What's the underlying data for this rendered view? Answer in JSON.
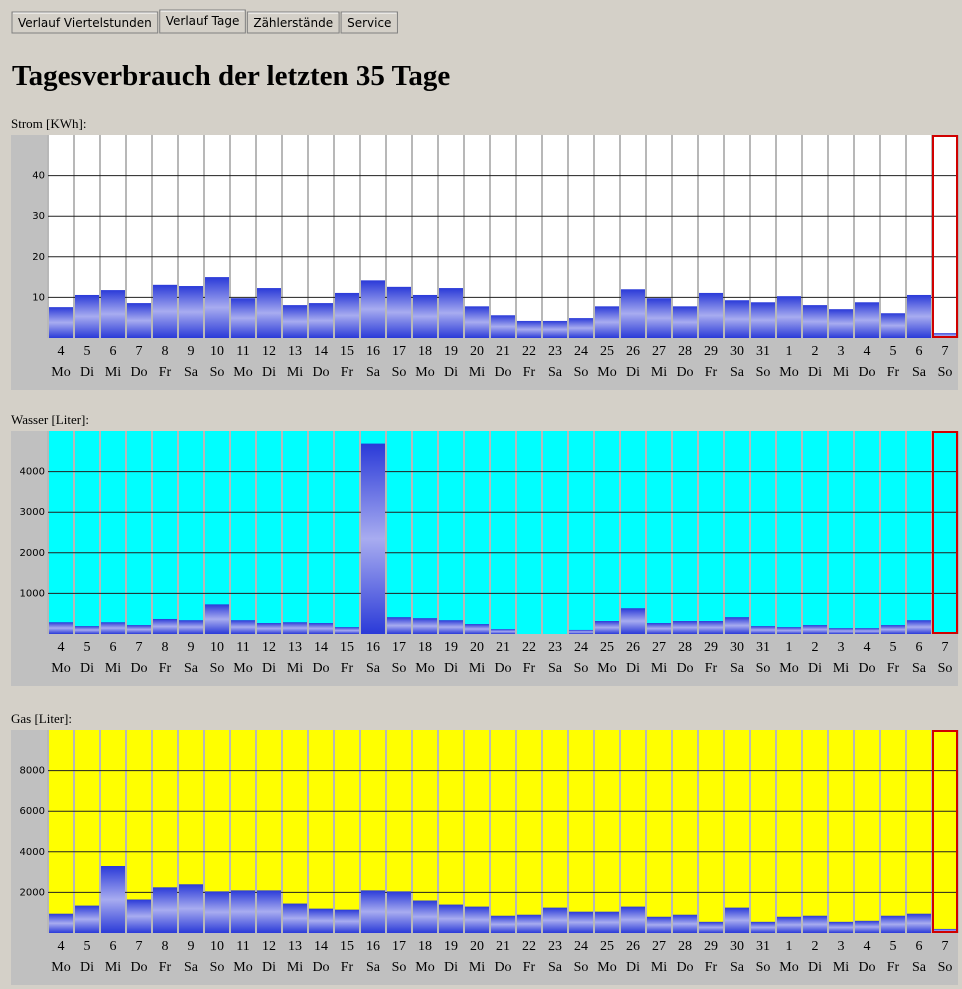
{
  "tabs": [
    "Verlauf Viertelstunden",
    "Verlauf Tage",
    "Zählerstände",
    "Service"
  ],
  "active_tab": 1,
  "heading": "Tagesverbrauch der letzten 35 Tage",
  "chart_data": [
    {
      "type": "bar",
      "title": "Strom [KWh]:",
      "background": "#ffffff",
      "highlight_last": "#d00000",
      "categories": [
        "4",
        "5",
        "6",
        "7",
        "8",
        "9",
        "10",
        "11",
        "12",
        "13",
        "14",
        "15",
        "16",
        "17",
        "18",
        "19",
        "20",
        "21",
        "22",
        "23",
        "24",
        "25",
        "26",
        "27",
        "28",
        "29",
        "30",
        "31",
        "1",
        "2",
        "3",
        "4",
        "5",
        "6",
        "7"
      ],
      "weekdays": [
        "Mo",
        "Di",
        "Mi",
        "Do",
        "Fr",
        "Sa",
        "So",
        "Mo",
        "Di",
        "Mi",
        "Do",
        "Fr",
        "Sa",
        "So",
        "Mo",
        "Di",
        "Mi",
        "Do",
        "Fr",
        "Sa",
        "So",
        "Mo",
        "Di",
        "Mi",
        "Do",
        "Fr",
        "Sa",
        "So",
        "Mo",
        "Di",
        "Mi",
        "Do",
        "Fr",
        "Sa",
        "So"
      ],
      "values": [
        7.6,
        10.6,
        11.8,
        8.6,
        13.1,
        12.8,
        15.0,
        9.8,
        12.3,
        8.1,
        8.6,
        11.1,
        14.2,
        12.6,
        10.6,
        12.3,
        7.8,
        5.6,
        4.2,
        4.2,
        4.9,
        7.8,
        12.0,
        9.8,
        7.8,
        11.1,
        9.3,
        8.8,
        10.3,
        8.1,
        7.1,
        8.8,
        6.1,
        10.6,
        1.2
      ],
      "ylim": [
        0,
        50
      ],
      "yticks": [
        10,
        20,
        30,
        40
      ],
      "grid": true
    },
    {
      "type": "bar",
      "title": "Wasser [Liter]:",
      "background": "#00ffff",
      "highlight_last": "#d00000",
      "categories": [
        "4",
        "5",
        "6",
        "7",
        "8",
        "9",
        "10",
        "11",
        "12",
        "13",
        "14",
        "15",
        "16",
        "17",
        "18",
        "19",
        "20",
        "21",
        "22",
        "23",
        "24",
        "25",
        "26",
        "27",
        "28",
        "29",
        "30",
        "31",
        "1",
        "2",
        "3",
        "4",
        "5",
        "6",
        "7"
      ],
      "weekdays": [
        "Mo",
        "Di",
        "Mi",
        "Do",
        "Fr",
        "Sa",
        "So",
        "Mo",
        "Di",
        "Mi",
        "Do",
        "Fr",
        "Sa",
        "So",
        "Mo",
        "Di",
        "Mi",
        "Do",
        "Fr",
        "Sa",
        "So",
        "Mo",
        "Di",
        "Mi",
        "Do",
        "Fr",
        "Sa",
        "So",
        "Mo",
        "Di",
        "Mi",
        "Do",
        "Fr",
        "Sa",
        "So"
      ],
      "values": [
        290,
        195,
        290,
        220,
        370,
        340,
        730,
        340,
        270,
        290,
        270,
        170,
        4690,
        415,
        390,
        340,
        245,
        120,
        0,
        0,
        100,
        320,
        635,
        270,
        320,
        320,
        415,
        195,
        170,
        220,
        145,
        145,
        220,
        340,
        0
      ],
      "ylim": [
        0,
        5000
      ],
      "yticks": [
        1000,
        2000,
        3000,
        4000
      ],
      "grid": true
    },
    {
      "type": "bar",
      "title": "Gas [Liter]:",
      "background": "#ffff00",
      "highlight_last": "#d00000",
      "categories": [
        "4",
        "5",
        "6",
        "7",
        "8",
        "9",
        "10",
        "11",
        "12",
        "13",
        "14",
        "15",
        "16",
        "17",
        "18",
        "19",
        "20",
        "21",
        "22",
        "23",
        "24",
        "25",
        "26",
        "27",
        "28",
        "29",
        "30",
        "31",
        "1",
        "2",
        "3",
        "4",
        "5",
        "6",
        "7"
      ],
      "weekdays": [
        "Mo",
        "Di",
        "Mi",
        "Do",
        "Fr",
        "Sa",
        "So",
        "Mo",
        "Di",
        "Mi",
        "Do",
        "Fr",
        "Sa",
        "So",
        "Mo",
        "Di",
        "Mi",
        "Do",
        "Fr",
        "Sa",
        "So",
        "Mo",
        "Di",
        "Mi",
        "Do",
        "Fr",
        "Sa",
        "So",
        "Mo",
        "Di",
        "Mi",
        "Do",
        "Fr",
        "Sa",
        "So"
      ],
      "values": [
        950,
        1350,
        3300,
        1650,
        2250,
        2400,
        2050,
        2100,
        2100,
        1450,
        1200,
        1150,
        2100,
        2050,
        1600,
        1400,
        1300,
        850,
        900,
        1250,
        1050,
        1050,
        1300,
        800,
        900,
        550,
        1250,
        550,
        800,
        850,
        550,
        600,
        850,
        950,
        200
      ],
      "ylim": [
        0,
        10000
      ],
      "yticks": [
        2000,
        4000,
        6000,
        8000
      ],
      "grid": true
    }
  ]
}
